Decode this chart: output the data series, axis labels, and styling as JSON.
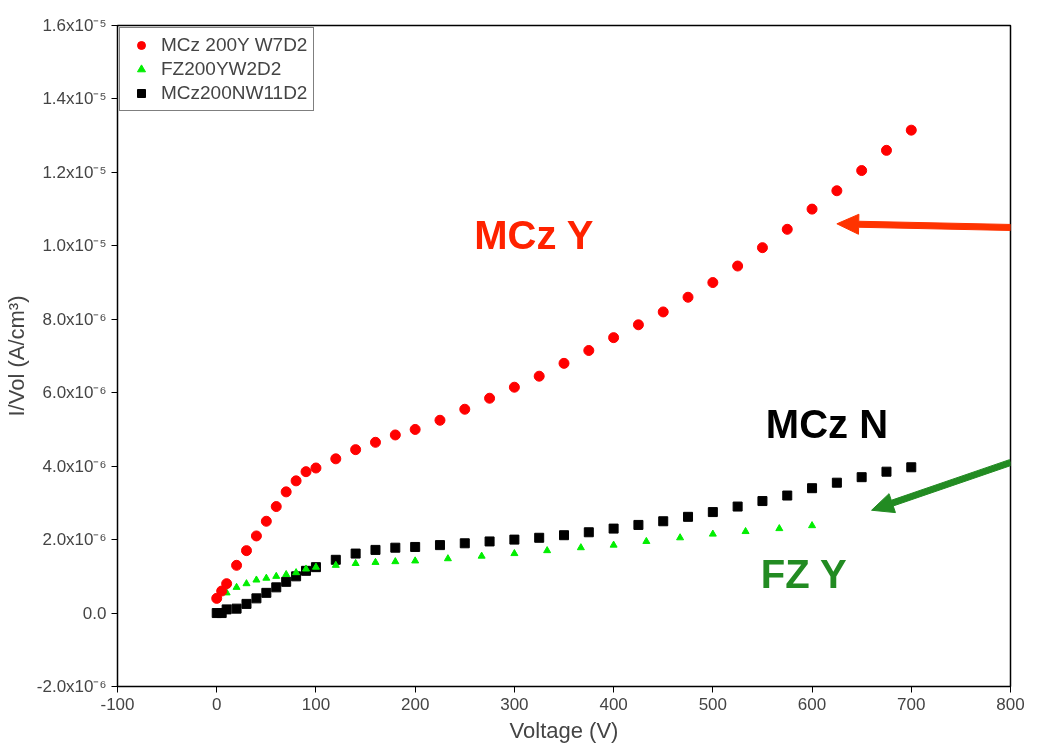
{
  "chart_data": {
    "type": "scatter",
    "xlabel": "Voltage (V)",
    "ylabel": "I/Vol (A/cm³)",
    "xlim": [
      -100,
      800
    ],
    "xticks": [
      -100,
      0,
      100,
      200,
      300,
      400,
      500,
      600,
      700,
      800
    ],
    "ylim": [
      -2e-06,
      1.6e-05
    ],
    "yticks": [
      {
        "value": -2e-06,
        "label": "-2.0x10⁻⁶"
      },
      {
        "value": 0,
        "label": "0.0"
      },
      {
        "value": 2e-06,
        "label": "2.0x10⁻⁶"
      },
      {
        "value": 4e-06,
        "label": "4.0x10⁻⁶"
      },
      {
        "value": 6e-06,
        "label": "6.0x10⁻⁶"
      },
      {
        "value": 8e-06,
        "label": "8.0x10⁻⁶"
      },
      {
        "value": 1e-05,
        "label": "1.0x10⁻⁵"
      },
      {
        "value": 1.2e-05,
        "label": "1.2x10⁻⁵"
      },
      {
        "value": 1.4e-05,
        "label": "1.4x10⁻⁵"
      },
      {
        "value": 1.6e-05,
        "label": "1.6x10⁻⁵"
      }
    ],
    "grid": false,
    "legend": "top left",
    "series": [
      {
        "name": "MCz 200Y W7D2",
        "color": "#ff0000",
        "marker": "circle",
        "x": [
          0,
          5,
          10,
          20,
          30,
          40,
          50,
          60,
          70,
          80,
          90,
          100,
          120,
          140,
          160,
          180,
          200,
          225,
          250,
          275,
          300,
          325,
          350,
          375,
          400,
          425,
          450,
          475,
          500,
          525,
          550,
          575,
          600,
          625,
          650,
          675,
          700
        ],
        "values": [
          4e-07,
          6e-07,
          8e-07,
          1.3e-06,
          1.7e-06,
          2.1e-06,
          2.5e-06,
          2.9e-06,
          3.3e-06,
          3.6e-06,
          3.85e-06,
          3.95e-06,
          4.2e-06,
          4.45e-06,
          4.65e-06,
          4.85e-06,
          5e-06,
          5.25e-06,
          5.55e-06,
          5.85e-06,
          6.15e-06,
          6.45e-06,
          6.8e-06,
          7.15e-06,
          7.5e-06,
          7.85e-06,
          8.2e-06,
          8.6e-06,
          9e-06,
          9.45e-06,
          9.95e-06,
          1.045e-05,
          1.1e-05,
          1.15e-05,
          1.205e-05,
          1.26e-05,
          1.315e-05
        ]
      },
      {
        "name": "FZ200YW2D2",
        "color": "#00ee00",
        "marker": "triangle",
        "x": [
          10,
          20,
          30,
          40,
          50,
          60,
          70,
          80,
          90,
          100,
          120,
          140,
          160,
          180,
          200,
          233,
          267,
          300,
          333,
          367,
          400,
          433,
          467,
          500,
          533,
          567,
          600
        ],
        "values": [
          5.5e-07,
          7e-07,
          8e-07,
          9e-07,
          9.5e-07,
          1e-06,
          1.05e-06,
          1.1e-06,
          1.2e-06,
          1.25e-06,
          1.3e-06,
          1.35e-06,
          1.38e-06,
          1.4e-06,
          1.42e-06,
          1.48e-06,
          1.55e-06,
          1.62e-06,
          1.7e-06,
          1.78e-06,
          1.85e-06,
          1.95e-06,
          2.05e-06,
          2.15e-06,
          2.22e-06,
          2.3e-06,
          2.38e-06
        ]
      },
      {
        "name": "MCz200NW11D2",
        "color": "#000000",
        "marker": "square",
        "x": [
          0,
          5,
          10,
          20,
          30,
          40,
          50,
          60,
          70,
          80,
          90,
          100,
          120,
          140,
          160,
          180,
          200,
          225,
          250,
          275,
          300,
          325,
          350,
          375,
          400,
          425,
          450,
          475,
          500,
          525,
          550,
          575,
          600,
          625,
          650,
          675,
          700
        ],
        "values": [
          0,
          0,
          1e-07,
          1.2e-07,
          2.5e-07,
          4e-07,
          5.5e-07,
          7e-07,
          8.5e-07,
          1e-06,
          1.15e-06,
          1.25e-06,
          1.45e-06,
          1.62e-06,
          1.72e-06,
          1.78e-06,
          1.8e-06,
          1.85e-06,
          1.9e-06,
          1.95e-06,
          2e-06,
          2.05e-06,
          2.12e-06,
          2.2e-06,
          2.3e-06,
          2.4e-06,
          2.5e-06,
          2.62e-06,
          2.75e-06,
          2.9e-06,
          3.05e-06,
          3.2e-06,
          3.4e-06,
          3.55e-06,
          3.7e-06,
          3.85e-06,
          3.97e-06
        ]
      }
    ],
    "annotations": [
      "MCz Y",
      "FZ Y",
      "MCz N"
    ]
  }
}
